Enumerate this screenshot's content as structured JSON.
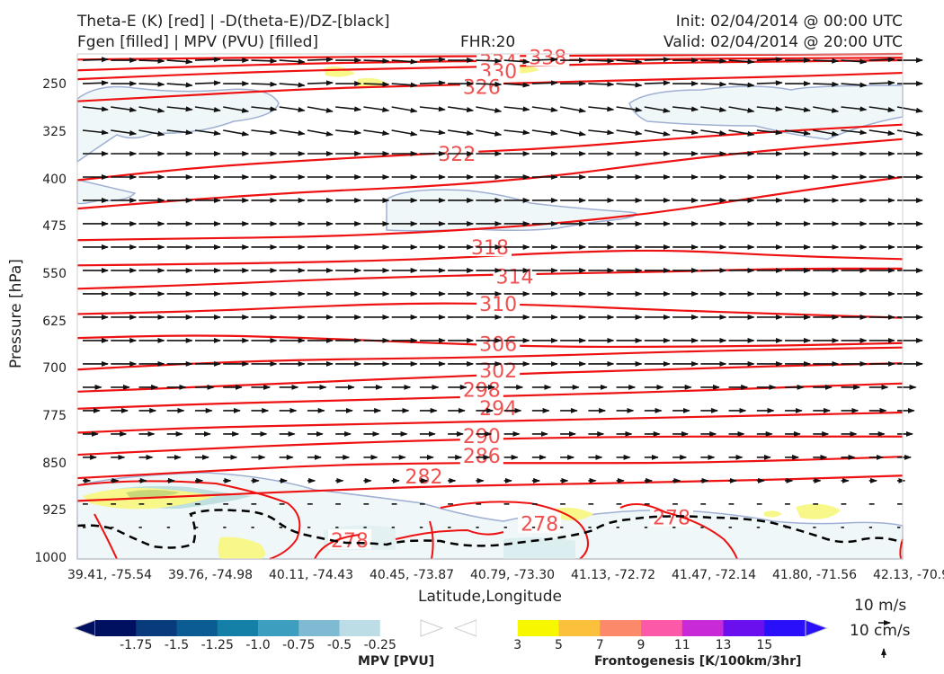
{
  "header": {
    "title_left_1": "Theta-E (K) [red] | -D(theta-E)/DZ-[black]",
    "title_left_2": "Fgen [filled] | MPV (PVU) [filled]",
    "fhr": "FHR:20",
    "init": "Init: 02/04/2014 @ 00:00 UTC",
    "valid": "Valid: 02/04/2014 @ 20:00 UTC"
  },
  "colors": {
    "theta_e": "#ee1111",
    "mpv_contour": "#9fb0d4",
    "wind_arrow": "#111111",
    "fgen_scale": [
      "#f7f700",
      "#fcc13c",
      "#fc8a6a",
      "#fc5aa8",
      "#c82ad8",
      "#6a10ee",
      "#2a10f8"
    ],
    "mpv_scale": [
      "#001060",
      "#073b7c",
      "#0a5c92",
      "#1480a8",
      "#3d9ebf",
      "#7fbad3",
      "#bcdde6",
      "#ffffff"
    ]
  },
  "chart_data": {
    "type": "cross-section",
    "xlabel": "Latitude,Longitude",
    "ylabel": "Pressure [hPa]",
    "x_ticks": [
      "39.41, -75.54",
      "39.76, -74.98",
      "40.11, -74.43",
      "40.45, -73.87",
      "40.79, -73.30",
      "41.13, -72.72",
      "41.47, -72.14",
      "41.80, -71.56",
      "42.13, -70.97"
    ],
    "y_ticks": [
      250,
      325,
      400,
      475,
      550,
      625,
      700,
      775,
      850,
      925,
      1000
    ],
    "ylim": [
      1000,
      200
    ],
    "theta_e_labels": [
      {
        "value": "338",
        "x": 0.57,
        "p": 205
      },
      {
        "value": "334",
        "x": 0.51,
        "p": 212
      },
      {
        "value": "330",
        "x": 0.51,
        "p": 227
      },
      {
        "value": "326",
        "x": 0.49,
        "p": 252
      },
      {
        "value": "322",
        "x": 0.46,
        "p": 358
      },
      {
        "value": "318",
        "x": 0.5,
        "p": 506
      },
      {
        "value": "314",
        "x": 0.53,
        "p": 552
      },
      {
        "value": "310",
        "x": 0.51,
        "p": 596
      },
      {
        "value": "306",
        "x": 0.51,
        "p": 659
      },
      {
        "value": "302",
        "x": 0.51,
        "p": 701
      },
      {
        "value": "298",
        "x": 0.49,
        "p": 732
      },
      {
        "value": "294",
        "x": 0.51,
        "p": 761
      },
      {
        "value": "290",
        "x": 0.49,
        "p": 805
      },
      {
        "value": "286",
        "x": 0.49,
        "p": 836
      },
      {
        "value": "282",
        "x": 0.42,
        "p": 869
      },
      {
        "value": "278",
        "x": 0.33,
        "p": 970
      },
      {
        "value": "278",
        "x": 0.56,
        "p": 944
      },
      {
        "value": "278",
        "x": 0.72,
        "p": 934
      }
    ],
    "mpv_colorbar": {
      "ticks": [
        "-1.75",
        "-1.5",
        "-1.25",
        "-1.0",
        "-0.75",
        "-0.5",
        "-0.25"
      ],
      "label": "MPV [PVU]"
    },
    "fgen_colorbar": {
      "ticks": [
        "3",
        "5",
        "7",
        "9",
        "11",
        "13",
        "15"
      ],
      "label": "Frontogenesis [K/100km/3hr]"
    },
    "reference_vectors": {
      "horizontal": "10 m/s",
      "vertical": "10 cm/s"
    }
  }
}
